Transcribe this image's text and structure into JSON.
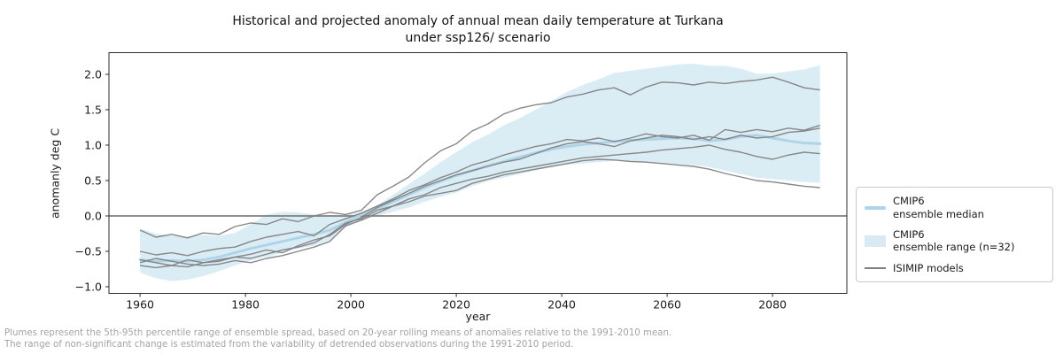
{
  "figure": {
    "title": "Historical and projected anomaly of annual mean daily temperature at Turkana\nunder ssp126/ scenario",
    "footnote_line1": "Plumes represent the 5th-95th percentile range of ensemble spread, based on 20-year rolling means of anomalies relative to the 1991-2010 mean.",
    "footnote_line2": "The range of non-significant change is estimated from the variability of detrended observations during the 1991-2010 period."
  },
  "legend": {
    "entries": [
      {
        "label": "CMIP6\nensemble median",
        "swatch": "thick-line",
        "color": "#aed4ea"
      },
      {
        "label": "CMIP6\nensemble range (n=32)",
        "swatch": "patch",
        "color": "#d9eaf5"
      },
      {
        "label": "ISIMIP models",
        "swatch": "line",
        "color": "#808080"
      }
    ]
  },
  "chart_data": {
    "type": "line",
    "title": "Historical and projected anomaly of annual mean daily temperature at Turkana under ssp126/ scenario",
    "xlabel": "year",
    "ylabel": "anomanly deg C",
    "xlim": [
      1954.1,
      2094.1
    ],
    "ylim": [
      -1.094,
      2.306
    ],
    "xticks": [
      1960,
      1980,
      2000,
      2020,
      2040,
      2060,
      2080
    ],
    "yticks": [
      -1.0,
      -0.5,
      0.0,
      0.5,
      1.0,
      1.5,
      2.0
    ],
    "grid": false,
    "legend_position": "outside right",
    "zero_line": 0.0,
    "zero_line_color": "#808080",
    "axis_color": "#2b2b2b",
    "tick_label_color": "#1a1a1a",
    "years": [
      1960,
      1963,
      1966,
      1969,
      1972,
      1975,
      1978,
      1981,
      1984,
      1987,
      1990,
      1993,
      1996,
      1999,
      2002,
      2005,
      2008,
      2011,
      2014,
      2017,
      2020,
      2023,
      2026,
      2029,
      2032,
      2035,
      2038,
      2041,
      2044,
      2047,
      2050,
      2053,
      2056,
      2059,
      2062,
      2065,
      2068,
      2071,
      2074,
      2077,
      2080,
      2083,
      2086,
      2089
    ],
    "band": {
      "name": "CMIP6 ensemble range (n=32)",
      "color": "#add8e6",
      "opacity": 0.45,
      "upper": [
        -0.18,
        -0.25,
        -0.28,
        -0.29,
        -0.27,
        -0.28,
        -0.24,
        -0.12,
        0.02,
        0.06,
        0.05,
        0.02,
        0.0,
        0.01,
        0.05,
        0.14,
        0.3,
        0.45,
        0.6,
        0.76,
        0.9,
        1.04,
        1.15,
        1.28,
        1.38,
        1.5,
        1.62,
        1.75,
        1.85,
        1.93,
        2.02,
        2.05,
        2.08,
        2.11,
        2.14,
        2.15,
        2.12,
        2.12,
        2.08,
        2.01,
        2.01,
        2.04,
        2.07,
        2.13
      ],
      "lower": [
        -0.8,
        -0.88,
        -0.92,
        -0.9,
        -0.85,
        -0.78,
        -0.7,
        -0.63,
        -0.58,
        -0.52,
        -0.46,
        -0.42,
        -0.34,
        -0.16,
        -0.06,
        0.0,
        0.06,
        0.12,
        0.2,
        0.27,
        0.33,
        0.42,
        0.49,
        0.54,
        0.59,
        0.64,
        0.69,
        0.72,
        0.74,
        0.76,
        0.78,
        0.77,
        0.76,
        0.74,
        0.73,
        0.72,
        0.69,
        0.64,
        0.59,
        0.54,
        0.52,
        0.5,
        0.48,
        0.47
      ]
    },
    "median": {
      "name": "CMIP6 ensemble median",
      "color": "#aed4ea",
      "values": [
        -0.62,
        -0.64,
        -0.63,
        -0.64,
        -0.62,
        -0.58,
        -0.52,
        -0.46,
        -0.41,
        -0.36,
        -0.31,
        -0.26,
        -0.2,
        -0.09,
        0.02,
        0.1,
        0.2,
        0.3,
        0.4,
        0.49,
        0.57,
        0.64,
        0.71,
        0.77,
        0.83,
        0.89,
        0.94,
        0.98,
        1.01,
        1.03,
        1.05,
        1.07,
        1.08,
        1.09,
        1.1,
        1.09,
        1.06,
        1.08,
        1.12,
        1.14,
        1.1,
        1.06,
        1.03,
        1.02
      ]
    },
    "isimip": {
      "name": "ISIMIP models",
      "color": "#828282",
      "series": [
        [
          -0.2,
          -0.3,
          -0.26,
          -0.31,
          -0.24,
          -0.26,
          -0.15,
          -0.1,
          -0.12,
          -0.04,
          -0.08,
          0.0,
          0.05,
          0.02,
          0.08,
          0.3,
          0.42,
          0.55,
          0.75,
          0.92,
          1.02,
          1.2,
          1.3,
          1.44,
          1.52,
          1.57,
          1.6,
          1.68,
          1.72,
          1.78,
          1.81,
          1.71,
          1.82,
          1.89,
          1.88,
          1.85,
          1.89,
          1.87,
          1.9,
          1.92,
          1.96,
          1.89,
          1.81,
          1.78
        ],
        [
          -0.5,
          -0.55,
          -0.52,
          -0.56,
          -0.5,
          -0.46,
          -0.44,
          -0.36,
          -0.3,
          -0.26,
          -0.22,
          -0.28,
          -0.12,
          -0.04,
          0.04,
          0.14,
          0.24,
          0.36,
          0.44,
          0.54,
          0.62,
          0.72,
          0.78,
          0.86,
          0.92,
          0.98,
          1.02,
          1.08,
          1.06,
          1.1,
          1.05,
          1.1,
          1.16,
          1.12,
          1.1,
          1.14,
          1.07,
          1.22,
          1.18,
          1.22,
          1.19,
          1.24,
          1.21,
          1.28
        ],
        [
          -0.62,
          -0.66,
          -0.7,
          -0.62,
          -0.66,
          -0.64,
          -0.58,
          -0.54,
          -0.48,
          -0.52,
          -0.42,
          -0.34,
          -0.28,
          -0.12,
          -0.02,
          0.12,
          0.22,
          0.32,
          0.42,
          0.5,
          0.58,
          0.64,
          0.7,
          0.76,
          0.8,
          0.88,
          0.96,
          1.02,
          1.05,
          1.02,
          0.98,
          1.06,
          1.1,
          1.14,
          1.12,
          1.08,
          1.12,
          1.08,
          1.14,
          1.1,
          1.12,
          1.18,
          1.2,
          1.24
        ],
        [
          -0.7,
          -0.73,
          -0.7,
          -0.72,
          -0.66,
          -0.62,
          -0.58,
          -0.6,
          -0.54,
          -0.48,
          -0.44,
          -0.38,
          -0.26,
          -0.1,
          -0.04,
          0.08,
          0.14,
          0.24,
          0.3,
          0.4,
          0.46,
          0.52,
          0.56,
          0.62,
          0.66,
          0.7,
          0.74,
          0.78,
          0.82,
          0.84,
          0.86,
          0.88,
          0.9,
          0.93,
          0.95,
          0.97,
          1.0,
          0.94,
          0.9,
          0.84,
          0.8,
          0.86,
          0.9,
          0.88
        ],
        [
          -0.66,
          -0.6,
          -0.64,
          -0.68,
          -0.7,
          -0.68,
          -0.63,
          -0.66,
          -0.6,
          -0.56,
          -0.5,
          -0.44,
          -0.36,
          -0.14,
          -0.06,
          0.04,
          0.14,
          0.2,
          0.28,
          0.32,
          0.36,
          0.46,
          0.52,
          0.58,
          0.62,
          0.66,
          0.7,
          0.74,
          0.78,
          0.8,
          0.79,
          0.77,
          0.76,
          0.74,
          0.72,
          0.7,
          0.66,
          0.6,
          0.55,
          0.5,
          0.48,
          0.45,
          0.42,
          0.4
        ]
      ]
    }
  }
}
